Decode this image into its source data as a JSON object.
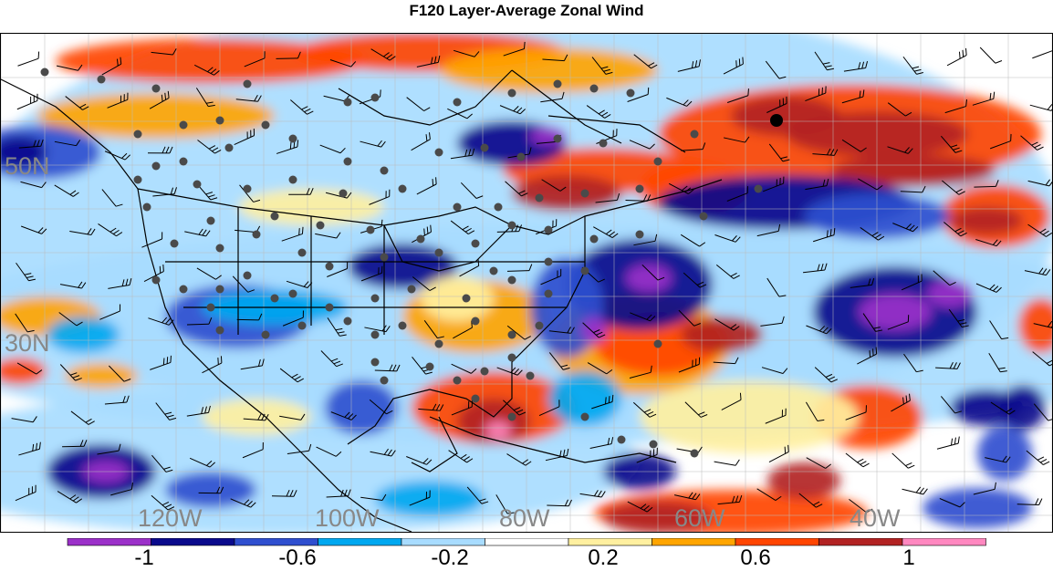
{
  "title": "F120 Layer-Average Zonal Wind",
  "longitude_labels": [
    "120W",
    "100W",
    "80W",
    "60W",
    "40W"
  ],
  "latitude_labels": [
    "50N",
    "30N"
  ],
  "colorbar": {
    "colors": [
      "#9b30c9",
      "#0a0a8c",
      "#2f4fcf",
      "#00a8f0",
      "#a8dcff",
      "#ffffff",
      "#fff0a0",
      "#ffa500",
      "#ff4500",
      "#b22222",
      "#ff88c0"
    ],
    "tick_labels": [
      "-1",
      "-0.6",
      "-0.2",
      "0.2",
      "0.6",
      "1"
    ]
  },
  "legend_icons": {
    "station": "station-dot-icon",
    "barb": "wind-barb-icon",
    "highlight": "highlight-station-icon"
  }
}
